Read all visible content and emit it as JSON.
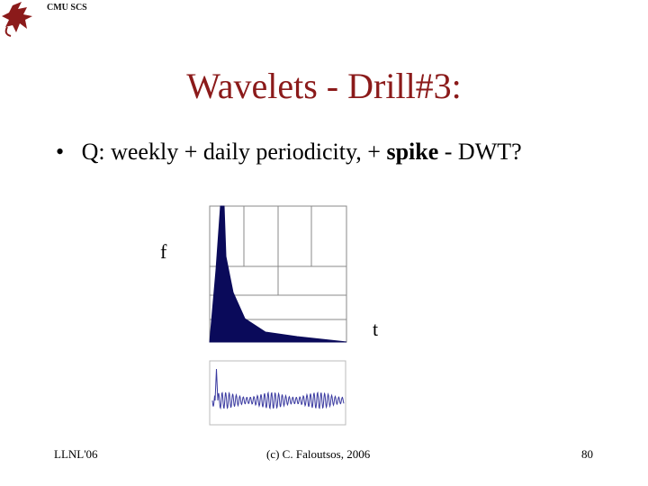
{
  "header": {
    "logo_text": "CMU SCS"
  },
  "title": "Wavelets - Drill#3:",
  "bullet": {
    "before": "Q: weekly + daily periodicity, + ",
    "bold": "spike",
    "after": " - DWT?"
  },
  "figure": {
    "y_label": "f",
    "x_label": "t"
  },
  "footer": {
    "left": "LLNL'06",
    "center": "(c) C. Faloutsos, 2006",
    "page": "80"
  }
}
